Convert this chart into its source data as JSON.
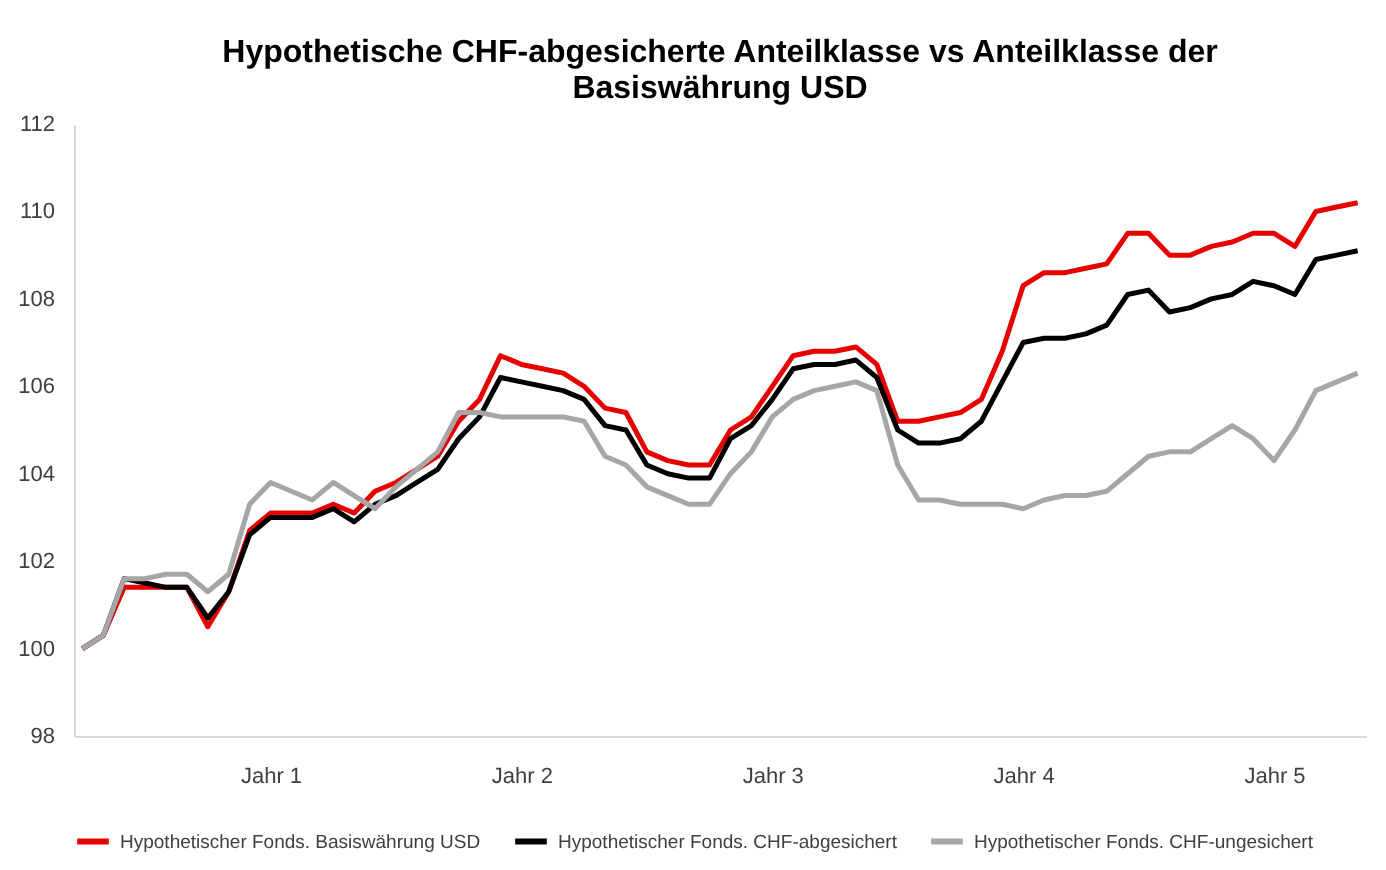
{
  "chart_data": {
    "type": "line",
    "title": "Hypothetische CHF-abgesicherte Anteilklasse vs Anteilklasse der Basiswährung USD",
    "categories": [
      null,
      null,
      null,
      null,
      null,
      null,
      null,
      null,
      null,
      "Jahr 1",
      null,
      null,
      null,
      null,
      null,
      null,
      null,
      null,
      null,
      null,
      null,
      "Jahr 2",
      null,
      null,
      null,
      null,
      null,
      null,
      null,
      null,
      null,
      null,
      null,
      "Jahr 3",
      null,
      null,
      null,
      null,
      null,
      null,
      null,
      null,
      null,
      null,
      null,
      "Jahr 4",
      null,
      null,
      null,
      null,
      null,
      null,
      null,
      null,
      null,
      null,
      null,
      "Jahr 5",
      null,
      null,
      null,
      null
    ],
    "series": [
      {
        "name": "Hypothetischer Fonds. Basiswährung USD",
        "color": "#e60000",
        "values": [
          100.0,
          100.3,
          101.4,
          101.4,
          101.4,
          101.4,
          100.5,
          101.3,
          102.7,
          103.1,
          103.1,
          103.1,
          103.3,
          103.1,
          103.6,
          103.8,
          104.1,
          104.4,
          105.2,
          105.7,
          106.7,
          106.5,
          106.4,
          106.3,
          106.0,
          105.5,
          105.4,
          104.5,
          104.3,
          104.2,
          104.2,
          105.0,
          105.3,
          106.0,
          106.7,
          106.8,
          106.8,
          106.9,
          106.5,
          105.2,
          105.2,
          105.3,
          105.4,
          105.7,
          106.8,
          108.3,
          108.6,
          108.6,
          108.7,
          108.8,
          109.5,
          109.5,
          109.0,
          109.0,
          109.2,
          109.3,
          109.5,
          109.5,
          109.2,
          110.0,
          110.1,
          110.2
        ]
      },
      {
        "name": "Hypothetischer Fonds. CHF-abgesichert",
        "color": "#000000",
        "values": [
          100.0,
          100.3,
          101.6,
          101.5,
          101.4,
          101.4,
          100.7,
          101.3,
          102.6,
          103.0,
          103.0,
          103.0,
          103.2,
          102.9,
          103.3,
          103.5,
          103.8,
          104.1,
          104.8,
          105.3,
          106.2,
          106.1,
          106.0,
          105.9,
          105.7,
          105.1,
          105.0,
          104.2,
          104.0,
          103.9,
          103.9,
          104.8,
          105.1,
          105.7,
          106.4,
          106.5,
          106.5,
          106.6,
          106.2,
          105.0,
          104.7,
          104.7,
          104.8,
          105.2,
          106.1,
          107.0,
          107.1,
          107.1,
          107.2,
          107.4,
          108.1,
          108.2,
          107.7,
          107.8,
          108.0,
          108.1,
          108.4,
          108.3,
          108.1,
          108.9,
          109.0,
          109.1
        ]
      },
      {
        "name": "Hypothetischer Fonds. CHF-ungesichert",
        "color": "#a6a6a6",
        "values": [
          100.0,
          100.3,
          101.6,
          101.6,
          101.7,
          101.7,
          101.3,
          101.7,
          103.3,
          103.8,
          103.6,
          103.4,
          103.8,
          103.5,
          103.2,
          103.7,
          104.1,
          104.5,
          105.4,
          105.4,
          105.3,
          105.3,
          105.3,
          105.3,
          105.2,
          104.4,
          104.2,
          103.7,
          103.5,
          103.3,
          103.3,
          104.0,
          104.5,
          105.3,
          105.7,
          105.9,
          106.0,
          106.1,
          105.9,
          104.2,
          103.4,
          103.4,
          103.3,
          103.3,
          103.3,
          103.2,
          103.4,
          103.5,
          103.5,
          103.6,
          104.0,
          104.4,
          104.5,
          104.5,
          104.8,
          105.1,
          104.8,
          104.3,
          105.0,
          105.9,
          106.1,
          106.3
        ]
      }
    ],
    "ylim": [
      98,
      112
    ],
    "yticks": [
      98,
      100,
      102,
      104,
      106,
      108,
      110,
      112
    ],
    "grid": false,
    "legend": "bottom",
    "marker": "none",
    "line_style": "solid"
  }
}
